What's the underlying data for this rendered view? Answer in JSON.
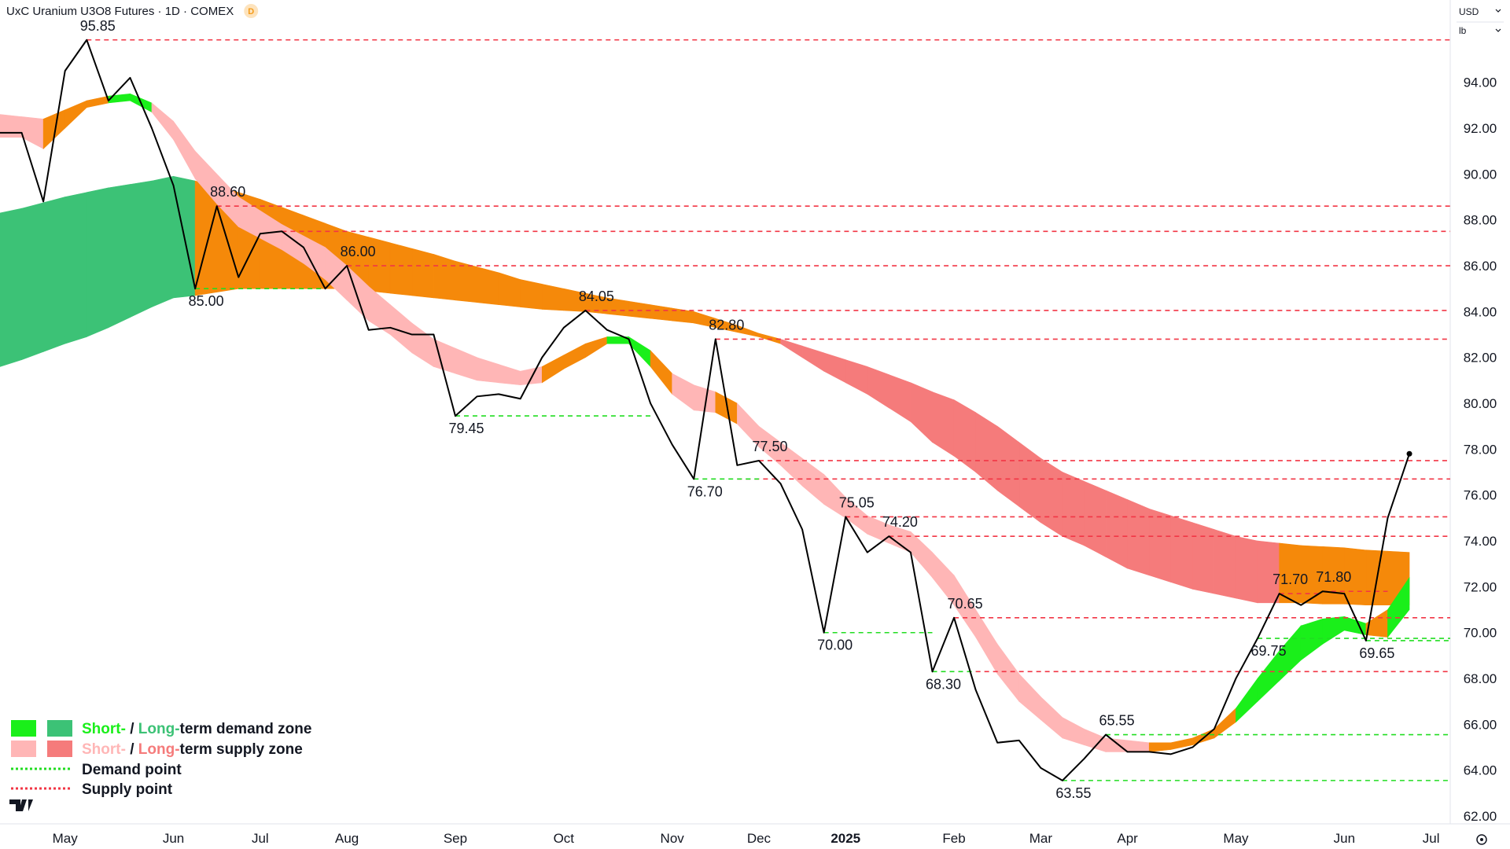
{
  "chart_data": {
    "type": "line",
    "title": "UxC Uranium U3O8 Futures · 1D · COMEX",
    "badge": "D",
    "currency": "USD",
    "unit": "lb",
    "ylim": [
      61.66,
      97.59
    ],
    "yticks": [
      {
        "value": 62,
        "label": "62.00"
      },
      {
        "value": 64,
        "label": "64.00"
      },
      {
        "value": 66,
        "label": "66.00"
      },
      {
        "value": 68,
        "label": "68.00"
      },
      {
        "value": 70,
        "label": "70.00"
      },
      {
        "value": 72,
        "label": "72.00"
      },
      {
        "value": 74,
        "label": "74.00"
      },
      {
        "value": 76,
        "label": "76.00"
      },
      {
        "value": 78,
        "label": "78.00"
      },
      {
        "value": 80,
        "label": "80.00"
      },
      {
        "value": 82,
        "label": "82.00"
      },
      {
        "value": 84,
        "label": "84.00"
      },
      {
        "value": 86,
        "label": "86.00"
      },
      {
        "value": 88,
        "label": "88.00"
      },
      {
        "value": 90,
        "label": "90.00"
      },
      {
        "value": 92,
        "label": "92.00"
      },
      {
        "value": 94,
        "label": "94.00"
      }
    ],
    "categories": [
      null,
      null,
      null,
      "May",
      null,
      null,
      null,
      null,
      "Jun",
      null,
      null,
      null,
      "Jul",
      null,
      null,
      null,
      "Aug",
      null,
      null,
      null,
      null,
      "Sep",
      null,
      null,
      null,
      null,
      "Oct",
      null,
      null,
      null,
      null,
      "Nov",
      null,
      null,
      null,
      "Dec",
      null,
      null,
      null,
      "2025",
      null,
      null,
      null,
      null,
      "Feb",
      null,
      null,
      null,
      "Mar",
      null,
      null,
      null,
      "Apr",
      null,
      null,
      null,
      null,
      "May",
      null,
      null,
      null,
      null,
      "Jun",
      null,
      null,
      null,
      "Jul"
    ],
    "price": {
      "color": "#000000",
      "values": [
        91.8,
        91.8,
        88.8,
        94.5,
        95.85,
        93.2,
        94.2,
        92.0,
        89.5,
        85.0,
        88.6,
        85.5,
        87.4,
        87.5,
        86.8,
        85.0,
        86.0,
        83.2,
        83.3,
        83.0,
        83.0,
        79.45,
        80.3,
        80.4,
        80.2,
        82.0,
        83.3,
        84.05,
        83.2,
        82.8,
        80.0,
        78.2,
        76.7,
        82.8,
        77.3,
        77.5,
        76.5,
        74.5,
        70.0,
        75.05,
        73.5,
        74.2,
        73.5,
        68.3,
        70.65,
        67.5,
        65.2,
        65.3,
        64.1,
        63.55,
        64.5,
        65.55,
        64.8,
        64.8,
        64.7,
        65.0,
        65.8,
        68.0,
        69.75,
        71.7,
        71.2,
        71.8,
        71.7,
        69.65,
        75.0,
        77.8,
        null
      ]
    },
    "long_zone": {
      "upper": [
        88.3,
        88.5,
        88.75,
        89.0,
        89.2,
        89.4,
        89.55,
        89.7,
        89.9,
        89.7,
        89.45,
        89.2,
        88.9,
        88.55,
        88.2,
        87.85,
        87.5,
        87.25,
        87.0,
        86.75,
        86.5,
        86.2,
        85.95,
        85.7,
        85.4,
        85.2,
        85.0,
        84.8,
        84.6,
        84.45,
        84.3,
        84.15,
        84.0,
        83.7,
        83.4,
        83.05,
        82.8,
        82.5,
        82.2,
        81.9,
        81.6,
        81.25,
        80.9,
        80.5,
        80.15,
        79.6,
        79.0,
        78.3,
        77.6,
        77.0,
        76.6,
        76.2,
        75.8,
        75.4,
        75.1,
        74.8,
        74.5,
        74.2,
        74.0,
        73.9,
        73.8,
        73.75,
        73.7,
        73.6,
        73.55,
        73.5,
        null
      ],
      "lower": [
        81.6,
        81.9,
        82.25,
        82.6,
        82.9,
        83.3,
        83.75,
        84.2,
        84.6,
        84.7,
        84.85,
        85.0,
        85.0,
        85.0,
        85.0,
        85.0,
        85.0,
        84.9,
        84.8,
        84.7,
        84.6,
        84.5,
        84.4,
        84.3,
        84.2,
        84.1,
        84.05,
        84.0,
        83.9,
        83.8,
        83.7,
        83.6,
        83.5,
        83.3,
        83.1,
        82.9,
        82.6,
        82.0,
        81.4,
        80.9,
        80.4,
        79.8,
        79.2,
        78.3,
        77.7,
        77.0,
        76.2,
        75.5,
        74.8,
        74.2,
        73.8,
        73.3,
        72.8,
        72.5,
        72.2,
        71.9,
        71.7,
        71.5,
        71.3,
        71.3,
        71.3,
        71.25,
        71.25,
        71.2,
        71.2,
        71.2,
        null
      ],
      "colors": [
        "#3cc276",
        "#3cc276",
        "#3cc276",
        "#3cc276",
        "#3cc276",
        "#3cc276",
        "#3cc276",
        "#3cc276",
        "#3cc276",
        "#f5890a",
        "#f5890a",
        "#f5890a",
        "#f5890a",
        "#f5890a",
        "#f5890a",
        "#f5890a",
        "#f5890a",
        "#f5890a",
        "#f5890a",
        "#f5890a",
        "#f5890a",
        "#f5890a",
        "#f5890a",
        "#f5890a",
        "#f5890a",
        "#f5890a",
        "#f5890a",
        "#f5890a",
        "#f5890a",
        "#f5890a",
        "#f5890a",
        "#f5890a",
        "#f5890a",
        "#f5890a",
        "#f5890a",
        "#f5890a",
        "#f57b7b",
        "#f57b7b",
        "#f57b7b",
        "#f57b7b",
        "#f57b7b",
        "#f57b7b",
        "#f57b7b",
        "#f57b7b",
        "#f57b7b",
        "#f57b7b",
        "#f57b7b",
        "#f57b7b",
        "#f57b7b",
        "#f57b7b",
        "#f57b7b",
        "#f57b7b",
        "#f57b7b",
        "#f57b7b",
        "#f57b7b",
        "#f57b7b",
        "#f57b7b",
        "#f57b7b",
        "#f57b7b",
        "#f5890a",
        "#f5890a",
        "#f5890a",
        "#f5890a",
        "#f5890a",
        "#f5890a",
        "#f5890a",
        null
      ]
    },
    "short_zone": {
      "upper": [
        92.6,
        92.5,
        92.4,
        92.8,
        93.2,
        93.4,
        93.5,
        93.1,
        92.3,
        91.0,
        90.0,
        89.0,
        88.4,
        87.8,
        87.3,
        86.8,
        86.0,
        85.1,
        84.3,
        83.5,
        82.8,
        82.4,
        82.0,
        81.7,
        81.4,
        81.6,
        82.1,
        82.6,
        82.9,
        82.9,
        82.3,
        81.3,
        80.8,
        80.5,
        80.0,
        79.0,
        78.3,
        77.6,
        76.9,
        75.9,
        75.1,
        74.7,
        74.4,
        73.5,
        72.5,
        71.0,
        69.5,
        68.2,
        67.2,
        66.3,
        65.8,
        65.4,
        65.3,
        65.2,
        65.2,
        65.4,
        65.8,
        66.7,
        68.0,
        69.2,
        70.3,
        70.6,
        70.7,
        70.4,
        71.0,
        72.4,
        null
      ],
      "lower": [
        91.6,
        91.6,
        91.1,
        92.0,
        92.9,
        93.1,
        93.2,
        92.7,
        91.5,
        89.8,
        88.7,
        87.7,
        87.2,
        86.7,
        86.1,
        85.4,
        84.5,
        83.6,
        83.0,
        82.2,
        81.6,
        81.3,
        81.0,
        80.9,
        80.8,
        80.9,
        81.5,
        82.0,
        82.6,
        82.6,
        81.6,
        80.4,
        79.7,
        79.6,
        79.1,
        78.1,
        77.3,
        76.4,
        75.6,
        75.0,
        74.3,
        73.9,
        73.5,
        72.4,
        71.2,
        69.8,
        68.2,
        67.0,
        66.2,
        65.4,
        65.1,
        64.8,
        64.8,
        64.8,
        64.9,
        65.1,
        65.4,
        66.1,
        67.0,
        67.9,
        68.8,
        69.5,
        70.1,
        69.9,
        69.8,
        71.0,
        null
      ],
      "colors": [
        "#ffb6b6",
        "#ffb6b6",
        "#f5890a",
        "#f5890a",
        "#f5890a",
        "#1aef1a",
        "#1aef1a",
        "#ffb6b6",
        "#ffb6b6",
        "#ffb6b6",
        "#ffb6b6",
        "#ffb6b6",
        "#ffb6b6",
        "#ffb6b6",
        "#ffb6b6",
        "#ffb6b6",
        "#ffb6b6",
        "#ffb6b6",
        "#ffb6b6",
        "#ffb6b6",
        "#ffb6b6",
        "#ffb6b6",
        "#ffb6b6",
        "#ffb6b6",
        "#ffb6b6",
        "#f5890a",
        "#f5890a",
        "#f5890a",
        "#1aef1a",
        "#1aef1a",
        "#f5890a",
        "#ffb6b6",
        "#ffb6b6",
        "#f5890a",
        "#ffb6b6",
        "#ffb6b6",
        "#ffb6b6",
        "#ffb6b6",
        "#ffb6b6",
        "#ffb6b6",
        "#ffb6b6",
        "#ffb6b6",
        "#ffb6b6",
        "#ffb6b6",
        "#ffb6b6",
        "#ffb6b6",
        "#ffb6b6",
        "#ffb6b6",
        "#ffb6b6",
        "#ffb6b6",
        "#ffb6b6",
        "#ffb6b6",
        "#ffb6b6",
        "#f5890a",
        "#f5890a",
        "#f5890a",
        "#f5890a",
        "#1aef1a",
        "#1aef1a",
        "#1aef1a",
        "#1aef1a",
        "#1aef1a",
        "#1aef1a",
        "#f5890a",
        "#1aef1a",
        "#1aef1a",
        null
      ]
    },
    "supply_color": "#f23645",
    "demand_color": "#22dd22",
    "levels": [
      {
        "kind": "supply",
        "value": 95.85,
        "label": "95.85",
        "start": 4
      },
      {
        "kind": "supply",
        "value": 88.6,
        "label": "88.60",
        "start": 10
      },
      {
        "kind": "supply",
        "value": 87.5,
        "start": 13
      },
      {
        "kind": "supply",
        "value": 86.0,
        "label": "86.00",
        "start": 16
      },
      {
        "kind": "supply",
        "value": 84.05,
        "label": "84.05",
        "start": 27
      },
      {
        "kind": "supply",
        "value": 82.8,
        "label": "82.80",
        "start": 33
      },
      {
        "kind": "supply",
        "value": 77.5,
        "label": "77.50",
        "start": 35
      },
      {
        "kind": "supply",
        "value": 76.7,
        "start": 34
      },
      {
        "kind": "supply",
        "value": 75.05,
        "label": "75.05",
        "start": 39
      },
      {
        "kind": "supply",
        "value": 74.2,
        "label": "74.20",
        "start": 41
      },
      {
        "kind": "supply",
        "value": 71.7,
        "label": "71.70",
        "start": 59,
        "end": 61
      },
      {
        "kind": "supply",
        "value": 71.8,
        "label": "71.80",
        "start": 61,
        "end": 64
      },
      {
        "kind": "supply",
        "value": 70.65,
        "label": "70.65",
        "start": 44
      },
      {
        "kind": "supply",
        "value": 68.3,
        "start": 45
      },
      {
        "kind": "demand",
        "value": 85.0,
        "label": "85.00",
        "start": 9,
        "end": 15
      },
      {
        "kind": "demand",
        "value": 79.45,
        "label": "79.45",
        "start": 21,
        "end": 30
      },
      {
        "kind": "demand",
        "value": 76.7,
        "label": "76.70",
        "start": 32,
        "end": 35
      },
      {
        "kind": "demand",
        "value": 70.0,
        "label": "70.00",
        "start": 38,
        "end": 43
      },
      {
        "kind": "demand",
        "value": 68.3,
        "label": "68.30",
        "start": 43,
        "end": 45
      },
      {
        "kind": "demand",
        "value": 65.55,
        "label": "65.55",
        "start": 51
      },
      {
        "kind": "demand",
        "value": 63.55,
        "label": "63.55",
        "start": 49
      },
      {
        "kind": "demand",
        "value": 69.75,
        "label": "69.75",
        "start": 58
      },
      {
        "kind": "demand",
        "value": 69.65,
        "label": "69.65",
        "start": 63
      }
    ],
    "legend": [
      {
        "swatches": [
          "#1aef1a",
          "#3cc276"
        ],
        "parts": [
          "Short-",
          " / ",
          "Long-",
          "term demand zone"
        ],
        "part_colors": [
          "#1aef1a",
          "#131722",
          "#3cc276",
          "#131722"
        ]
      },
      {
        "swatches": [
          "#ffb6b6",
          "#f57b7b"
        ],
        "parts": [
          "Short-",
          " / ",
          "Long-",
          "term supply zone"
        ],
        "part_colors": [
          "#ffb6b6",
          "#131722",
          "#f57b7b",
          "#131722"
        ]
      },
      {
        "kind": "demand",
        "label": "Demand point"
      },
      {
        "kind": "supply",
        "label": "Supply point"
      }
    ]
  }
}
